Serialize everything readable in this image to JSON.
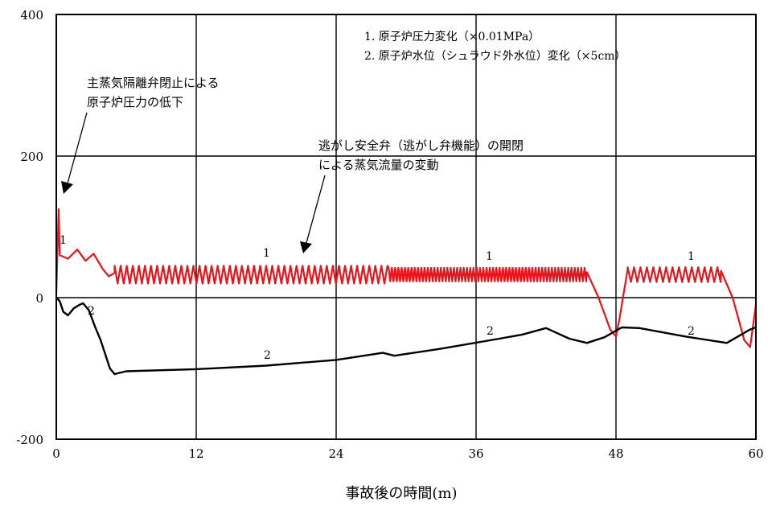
{
  "chart_data": {
    "type": "line",
    "xlabel": "事故後の時間(m)",
    "ylabel": "",
    "xlim": [
      0,
      60
    ],
    "ylim": [
      -200,
      400
    ],
    "x_ticks": [
      "0",
      "12",
      "24",
      "36",
      "48",
      "60"
    ],
    "y_ticks": [
      "-200",
      "0",
      "200",
      "400"
    ],
    "grid": true,
    "legend": {
      "placement": "top-right",
      "entries": [
        "1. 原子炉圧力変化（×0.01MPa）",
        "2. 原子炉水位（シュラウド外水位）変化（×5cm）"
      ]
    },
    "annotations": [
      {
        "lines": [
          "主蒸気隔離弁閉止による",
          "原子炉圧力の低下"
        ]
      },
      {
        "lines": [
          "逃がし安全弁（逃がし弁機能）の開閉",
          "による蒸気流量の変動"
        ]
      }
    ],
    "series_labels": [
      "1",
      "1",
      "1",
      "1",
      "2",
      "2",
      "2",
      "2"
    ],
    "series": [
      {
        "name": "1",
        "color": "#e8141c",
        "points": [
          [
            0,
            5
          ],
          [
            0.2,
            125
          ],
          [
            0.3,
            60
          ],
          [
            1,
            55
          ],
          [
            1.8,
            68
          ],
          [
            2.5,
            52
          ],
          [
            3.2,
            62
          ],
          [
            4,
            40
          ],
          [
            4.5,
            30
          ],
          [
            5,
            35
          ],
          [
            45.5,
            36
          ],
          [
            46.5,
            0
          ],
          [
            47.5,
            -45
          ],
          [
            48,
            -55
          ],
          [
            48.3,
            -30
          ],
          [
            49,
            40
          ],
          [
            57,
            38
          ],
          [
            58,
            0
          ],
          [
            59,
            -60
          ],
          [
            59.5,
            -70
          ],
          [
            60,
            -10
          ]
        ],
        "oscillation": [
          {
            "from": 5,
            "to": 28.5,
            "low": 20,
            "high": 45,
            "period": 0.52
          },
          {
            "from": 28.5,
            "to": 45.5,
            "low": 23,
            "high": 42,
            "period": 0.28
          },
          {
            "from": 49,
            "to": 57,
            "low": 22,
            "high": 43,
            "period": 0.55
          }
        ]
      },
      {
        "name": "2",
        "color": "#000000",
        "points": [
          [
            0,
            0
          ],
          [
            0.3,
            -5
          ],
          [
            0.6,
            -20
          ],
          [
            1,
            -25
          ],
          [
            1.5,
            -15
          ],
          [
            2,
            -10
          ],
          [
            2.3,
            -8
          ],
          [
            2.8,
            -18
          ],
          [
            3.3,
            -40
          ],
          [
            3.8,
            -60
          ],
          [
            4.2,
            -80
          ],
          [
            4.6,
            -100
          ],
          [
            5,
            -108
          ],
          [
            6,
            -104
          ],
          [
            12,
            -101
          ],
          [
            18,
            -96
          ],
          [
            24,
            -88
          ],
          [
            28,
            -78
          ],
          [
            29,
            -82
          ],
          [
            33,
            -72
          ],
          [
            38,
            -58
          ],
          [
            40,
            -52
          ],
          [
            42,
            -43
          ],
          [
            44,
            -58
          ],
          [
            45.5,
            -64
          ],
          [
            47,
            -56
          ],
          [
            48.5,
            -42
          ],
          [
            50,
            -43
          ],
          [
            54,
            -55
          ],
          [
            57.5,
            -64
          ],
          [
            59.5,
            -45
          ],
          [
            60,
            -42
          ]
        ]
      }
    ]
  }
}
